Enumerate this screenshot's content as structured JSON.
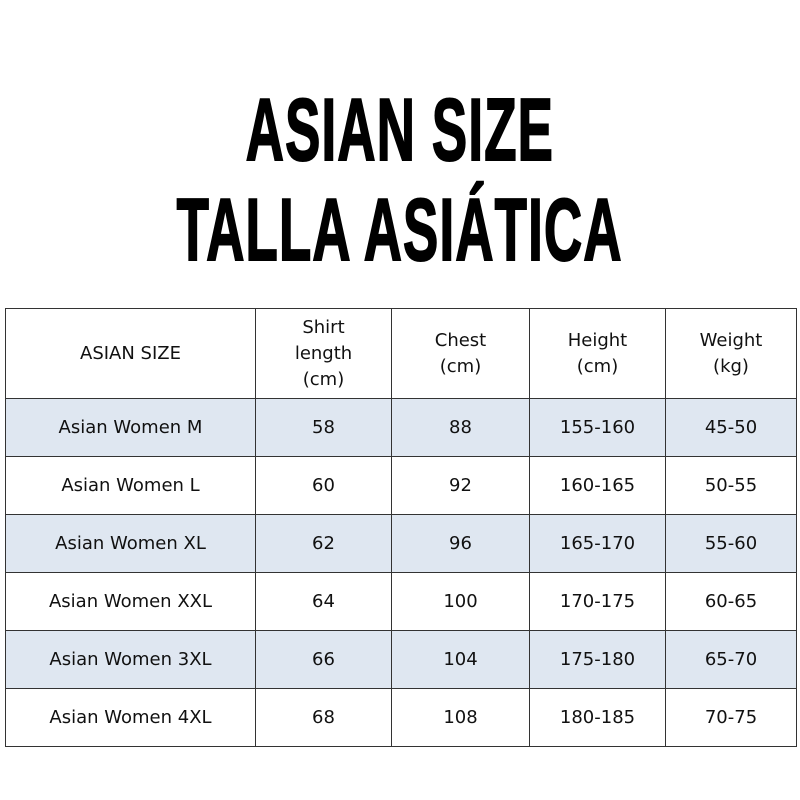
{
  "title": {
    "line1": "ASIAN SIZE",
    "line2": "TALLA ASIÁTICA"
  },
  "colors": {
    "alt_row": "#dfe7f1",
    "border": "#333333"
  },
  "table": {
    "headers": [
      [
        "ASIAN SIZE"
      ],
      [
        "Shirt",
        "length",
        "(cm)"
      ],
      [
        "Chest",
        "(cm)"
      ],
      [
        "Height",
        "(cm)"
      ],
      [
        "Weight",
        "(kg)"
      ]
    ],
    "rows": [
      [
        "Asian Women M",
        "58",
        "88",
        "155-160",
        "45-50"
      ],
      [
        "Asian Women L",
        "60",
        "92",
        "160-165",
        "50-55"
      ],
      [
        "Asian Women XL",
        "62",
        "96",
        "165-170",
        "55-60"
      ],
      [
        "Asian Women XXL",
        "64",
        "100",
        "170-175",
        "60-65"
      ],
      [
        "Asian Women 3XL",
        "66",
        "104",
        "175-180",
        "65-70"
      ],
      [
        "Asian Women 4XL",
        "68",
        "108",
        "180-185",
        "70-75"
      ]
    ]
  }
}
